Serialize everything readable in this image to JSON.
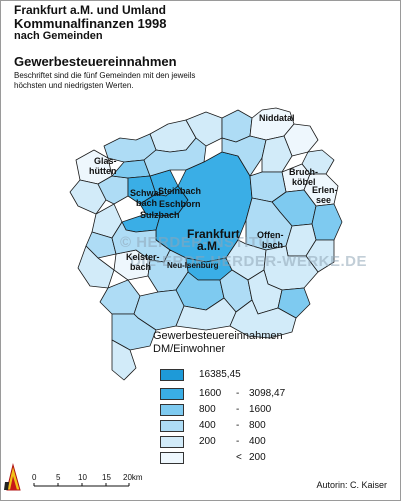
{
  "header": {
    "line1": "Frankfurt a.M. und Umland",
    "line2": "Kommunalfinanzen 1998",
    "line3": "nach Gemeinden"
  },
  "subtitle": "Gewerbesteuereinnahmen",
  "description": "Beschriftet sind die fünf Gemeinden mit den jeweils höchsten und niedrigsten Werten.",
  "map_labels": {
    "niddatal": "Niddatal",
    "glashuetten_1": "Glas-",
    "glashuetten_2": "hütten",
    "bruchkoebel_1": "Bruch-",
    "bruchkoebel_2": "köbel",
    "erlensee_1": "Erlen-",
    "erlensee_2": "see",
    "schwalbach_1": "Schwal-",
    "schwalbach_2": "bach",
    "steinbach": "Steinbach",
    "eschborn": "Eschborn",
    "sulzbach": "Sulzbach",
    "frankfurt_1": "Frankfurt",
    "frankfurt_2": "a.M.",
    "offenbach_1": "Offen-",
    "offenbach_2": "bach",
    "kelsterbach_1": "Kelster-",
    "kelsterbach_2": "bach",
    "neuisenburg": "Neu-Isenburg"
  },
  "watermark": {
    "line1": "© HERDER-INSTITUT",
    "line2": "DIE-ERDE.HERDER-WERKE.DE"
  },
  "legend": {
    "title_line1": "Gewerbesteuereinnahmen",
    "title_line2": "DM/Einwohner",
    "classes": [
      {
        "from": "16385,45",
        "dash": "",
        "to": "",
        "color": "#1e9ad8"
      },
      {
        "from": "1600",
        "dash": "-",
        "to": "3098,47",
        "color": "#3aaee6"
      },
      {
        "from": "800",
        "dash": "-",
        "to": "1600",
        "color": "#7ecaf0"
      },
      {
        "from": "400",
        "dash": "-",
        "to": "800",
        "color": "#aedcf5"
      },
      {
        "from": "200",
        "dash": "-",
        "to": "400",
        "color": "#d2ebf9"
      },
      {
        "from": "<",
        "dash": "",
        "to": "200",
        "color": "#eef7fd"
      }
    ]
  },
  "scale_bar": {
    "ticks": [
      "0",
      "5",
      "10",
      "15",
      "20km"
    ]
  },
  "author": "Autorin:   C. Kaiser",
  "colors": {
    "highest": "#1e9ad8",
    "high": "#3aaee6",
    "mid": "#7ecaf0",
    "lowmid": "#aedcf5",
    "low": "#d2ebf9",
    "lowest": "#eef7fd",
    "border": "#1a1a1a"
  }
}
